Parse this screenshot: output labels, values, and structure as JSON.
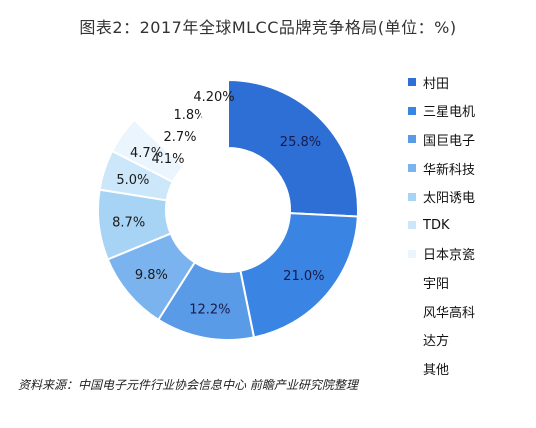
{
  "title": "图表2：2017年全球MLCC品牌竞争格局(单位：%)",
  "source": "资料来源：中国电子元件行业协会信息中心 前瞻产业研究院整理",
  "chart_data": {
    "type": "donut",
    "title": "图表2：2017年全球MLCC品牌竞争格局(单位：%)",
    "unit": "%",
    "legend_position": "right",
    "categories": [
      "村田",
      "三星电机",
      "国巨电子",
      "华新科技",
      "太阳诱电",
      "TDK",
      "日本京瓷",
      "宇阳",
      "风华高科",
      "达方",
      "其他"
    ],
    "values": [
      25.8,
      21.0,
      12.2,
      9.8,
      8.7,
      5.0,
      4.7,
      4.1,
      2.7,
      1.8,
      4.2
    ],
    "labels": [
      "25.8%",
      "21.0%",
      "12.2%",
      "9.8%",
      "8.7%",
      "5.0%",
      "4.7%",
      "4.1%",
      "2.7%",
      "1.8%",
      "4.20%"
    ],
    "colors": [
      "#2e6fd6",
      "#3a84e3",
      "#5a9be8",
      "#7ab3ee",
      "#a7d4f5",
      "#cde7fa",
      "#eaf5fd",
      "#ffffff",
      "#ffffff",
      "#ffffff",
      "#ffffff"
    ],
    "label_colors": [
      "#1a1a4a",
      "#1a1a4a",
      "#1a1a4a",
      "#1a1a1a",
      "#1a1a1a",
      "#1a1a1a",
      "#1a1a1a",
      "#1a1a1a",
      "#1a1a1a",
      "#1a1a1a",
      "#1a1a1a"
    ]
  }
}
